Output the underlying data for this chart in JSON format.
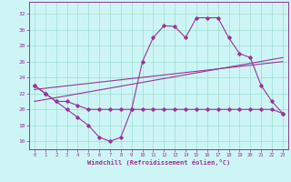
{
  "xlabel": "Windchill (Refroidissement éolien,°C)",
  "ylabel": "",
  "background_color": "#cef5f5",
  "line_color": "#993399",
  "grid_color": "#99ddcc",
  "xlim": [
    -0.5,
    23.5
  ],
  "ylim": [
    15.0,
    33.5
  ],
  "yticks": [
    16,
    18,
    20,
    22,
    24,
    26,
    28,
    30,
    32
  ],
  "xticks": [
    0,
    1,
    2,
    3,
    4,
    5,
    6,
    7,
    8,
    9,
    10,
    11,
    12,
    13,
    14,
    15,
    16,
    17,
    18,
    19,
    20,
    21,
    22,
    23
  ],
  "series": [
    {
      "x": [
        0,
        1,
        2,
        3,
        4,
        5,
        6,
        7,
        8,
        9,
        10,
        11,
        12,
        13,
        14,
        15,
        16,
        17,
        18,
        19,
        20,
        21,
        22,
        23
      ],
      "y": [
        23,
        22,
        21,
        20,
        19,
        18,
        16.5,
        16,
        16.5,
        20,
        26,
        29,
        30.5,
        30.4,
        29,
        31.5,
        31.5,
        31.5,
        29,
        27,
        26.5,
        23,
        21,
        19.5
      ]
    },
    {
      "x": [
        0,
        1,
        2,
        3,
        4,
        5,
        6,
        7,
        8,
        9,
        10,
        11,
        12,
        13,
        14,
        15,
        16,
        17,
        18,
        19,
        20,
        21,
        22,
        23
      ],
      "y": [
        23,
        22,
        21,
        21,
        20.5,
        20,
        20,
        20,
        20,
        20,
        20,
        20,
        20,
        20,
        20,
        20,
        20,
        20,
        20,
        20,
        20,
        20,
        20,
        19.5
      ]
    },
    {
      "x": [
        0,
        23
      ],
      "y": [
        21,
        26.5
      ]
    },
    {
      "x": [
        0,
        23
      ],
      "y": [
        22.5,
        26.0
      ]
    }
  ]
}
